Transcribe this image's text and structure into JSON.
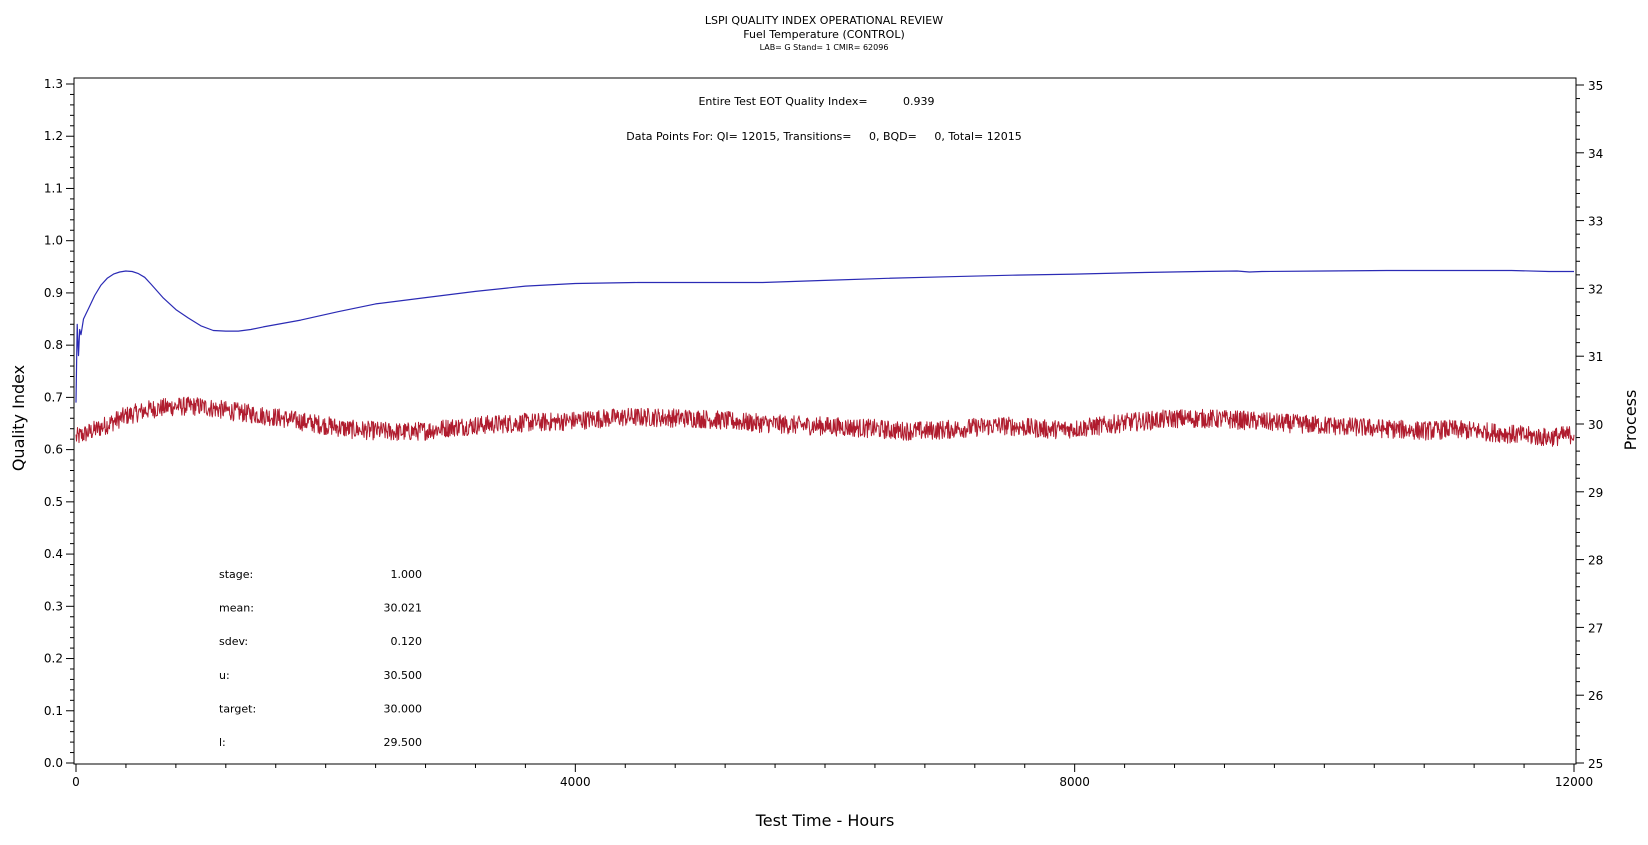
{
  "chart_data": {
    "type": "line",
    "title": "LSPI QUALITY INDEX OPERATIONAL REVIEW",
    "subtitle": "Fuel Temperature (CONTROL)",
    "subsubtitle": "LAB= G Stand= 1 CMIR= 62096",
    "annotations": {
      "qi_label": "Entire Test EOT Quality Index=",
      "qi_value": "0.939",
      "points_label": "Data Points For: QI= 12015, Transitions=     0, BQD=     0, Total= 12015"
    },
    "xlabel": "Test Time - Hours",
    "ylabel_left": "Quality Index",
    "ylabel_right": "Process",
    "xlim": [
      0,
      12000
    ],
    "ylim_left": [
      0.0,
      1.3
    ],
    "ylim_right": [
      25,
      35
    ],
    "x_ticks": [
      "0",
      "4000",
      "8000",
      "12000"
    ],
    "y_left_ticks": [
      "0.0",
      "0.1",
      "0.2",
      "0.3",
      "0.4",
      "0.5",
      "0.6",
      "0.7",
      "0.8",
      "0.9",
      "1.0",
      "1.1",
      "1.2",
      "1.3"
    ],
    "y_right_ticks": [
      "25",
      "26",
      "27",
      "28",
      "29",
      "30",
      "31",
      "32",
      "33",
      "34",
      "35"
    ],
    "grid": false,
    "series": [
      {
        "axis": "left",
        "color": "#2b2bb5",
        "x": [
          0,
          10,
          20,
          30,
          40,
          60,
          80,
          100,
          150,
          200,
          250,
          300,
          350,
          400,
          450,
          500,
          550,
          600,
          700,
          800,
          900,
          1000,
          1100,
          1200,
          1300,
          1400,
          1500,
          1800,
          2100,
          2400,
          2800,
          3200,
          3600,
          4000,
          4500,
          5000,
          5500,
          6000,
          6500,
          7000,
          7500,
          8000,
          8500,
          9000,
          9300,
          9400,
          9500,
          10000,
          10500,
          11000,
          11500,
          11800,
          12000
        ],
        "y": [
          0.69,
          0.84,
          0.78,
          0.83,
          0.82,
          0.85,
          0.86,
          0.87,
          0.895,
          0.915,
          0.928,
          0.936,
          0.94,
          0.942,
          0.941,
          0.937,
          0.93,
          0.917,
          0.89,
          0.868,
          0.852,
          0.837,
          0.828,
          0.827,
          0.827,
          0.83,
          0.835,
          0.848,
          0.864,
          0.879,
          0.891,
          0.903,
          0.913,
          0.918,
          0.92,
          0.92,
          0.92,
          0.924,
          0.928,
          0.931,
          0.934,
          0.936,
          0.939,
          0.941,
          0.942,
          0.94,
          0.941,
          0.942,
          0.943,
          0.943,
          0.943,
          0.941,
          0.941
        ]
      },
      {
        "axis": "right",
        "color": "#b01c2e",
        "x": [
          0,
          200,
          400,
          600,
          800,
          1000,
          1200,
          1400,
          1600,
          1800,
          2000,
          2200,
          2400,
          2600,
          2800,
          3000,
          3200,
          3400,
          3600,
          3800,
          4000,
          4200,
          4400,
          4600,
          4800,
          5000,
          5200,
          5400,
          5600,
          5800,
          6000,
          6200,
          6400,
          6600,
          6800,
          7000,
          7200,
          7400,
          7600,
          7800,
          8000,
          8200,
          8400,
          8600,
          8800,
          9000,
          9200,
          9400,
          9600,
          9800,
          10000,
          10200,
          10400,
          10600,
          10800,
          11000,
          11200,
          11400,
          11600,
          11800,
          12000
        ],
        "y": [
          29.8,
          29.95,
          30.12,
          30.22,
          30.26,
          30.26,
          30.2,
          30.15,
          30.1,
          30.04,
          29.98,
          29.92,
          29.9,
          29.88,
          29.9,
          29.95,
          29.98,
          30.0,
          30.02,
          30.03,
          30.05,
          30.08,
          30.1,
          30.1,
          30.09,
          30.08,
          30.05,
          30.02,
          30.0,
          29.98,
          29.97,
          29.95,
          29.93,
          29.9,
          29.9,
          29.92,
          29.95,
          29.98,
          29.95,
          29.92,
          29.93,
          29.97,
          30.02,
          30.05,
          30.08,
          30.08,
          30.07,
          30.05,
          30.02,
          30.0,
          29.98,
          29.96,
          29.94,
          29.92,
          29.9,
          29.92,
          29.9,
          29.87,
          29.83,
          29.8,
          29.85
        ]
      }
    ],
    "stats": [
      {
        "label": "stage:",
        "value": "1.000"
      },
      {
        "label": "mean:",
        "value": "30.021"
      },
      {
        "label": "sdev:",
        "value": "0.120"
      },
      {
        "label": "u:",
        "value": "30.500"
      },
      {
        "label": "target:",
        "value": "30.000"
      },
      {
        "label": "l:",
        "value": "29.500"
      }
    ]
  }
}
